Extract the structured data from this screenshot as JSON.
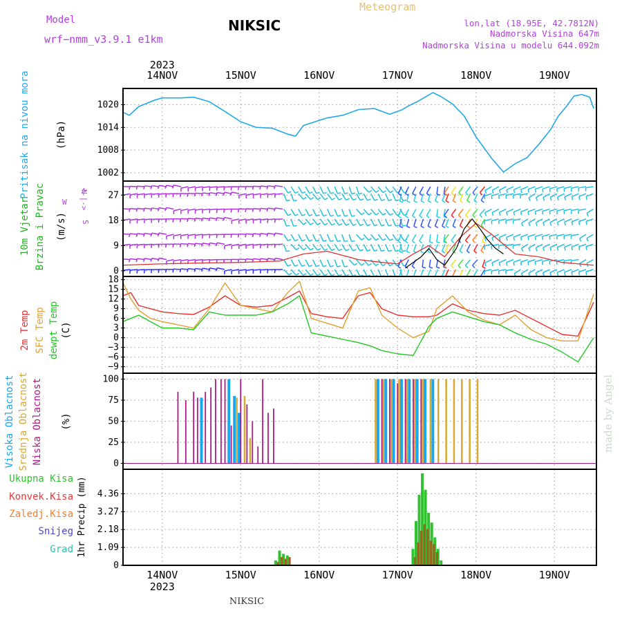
{
  "header": {
    "model_label": "Model",
    "model_name": "wrf−nmm_v3.9.1 e1km",
    "title": "NIKSIC",
    "subtitle": "Meteogram",
    "coords": "lon,lat (18.95E, 42.7812N)",
    "elevation": "Nadmorska Visina 647m",
    "model_elevation": "Nadmorska Visina u modelu 644.092m"
  },
  "footer": {
    "station": "NIKSIC",
    "credit": "made by Angel"
  },
  "colors": {
    "pressure": "#20a8e8",
    "wind_label": "#18b818",
    "temp2m": "#e83030",
    "sfc_temp": "#e0a030",
    "dewpt": "#20c820",
    "high_cloud": "#18a8f0",
    "mid_cloud": "#d8a830",
    "low_cloud": "#b01888",
    "total_precip": "#30c030",
    "conv_precip": "#e83838",
    "frz_precip": "#f08030",
    "snow": "#4848d8",
    "grad": "#20c8b0",
    "label_purple": "#b040e0"
  },
  "chart_data": [
    {
      "id": "pressure",
      "type": "line",
      "year_label": "2023",
      "top_ticks": [
        "14NOV",
        "15NOV",
        "16NOV",
        "17NOV",
        "18NOV",
        "19NOV"
      ],
      "panel_label": "Pritisak na nivou mora",
      "unit": "(hPa)",
      "y_ticks": [
        "1020",
        "1014",
        "1008",
        "1002"
      ],
      "ylim": [
        999.8,
        1024.3
      ],
      "xlim": [
        0,
        6
      ],
      "x": [
        0,
        0.08,
        0.2,
        0.4,
        0.5,
        0.6,
        0.75,
        0.9,
        1.1,
        1.3,
        1.5,
        1.7,
        1.9,
        2.1,
        2.2,
        2.3,
        2.45,
        2.6,
        2.8,
        3.0,
        3.2,
        3.4,
        3.55,
        3.65,
        3.75,
        3.85,
        3.95,
        4.05,
        4.2,
        4.35,
        4.5,
        4.7,
        4.85,
        5.0,
        5.15,
        5.3,
        5.45,
        5.55,
        5.65,
        5.75,
        5.85,
        5.95,
        6.0
      ],
      "values": [
        1018.0,
        1017.2,
        1019.5,
        1021.2,
        1021.8,
        1021.8,
        1021.8,
        1022.0,
        1020.8,
        1018.2,
        1015.5,
        1014.0,
        1013.8,
        1012.2,
        1011.7,
        1014.5,
        1015.5,
        1016.5,
        1017.2,
        1018.7,
        1019.0,
        1017.5,
        1018.6,
        1019.8,
        1020.8,
        1022.0,
        1023.2,
        1022.2,
        1020.2,
        1017.0,
        1011.5,
        1005.8,
        1002.2,
        1004.4,
        1006.0,
        1009.5,
        1013.4,
        1017.0,
        1019.5,
        1022.3,
        1022.7,
        1022.0,
        1019.0
      ]
    },
    {
      "id": "wind",
      "type": "area",
      "panel_label_1": "10m Vjetar",
      "panel_label_2": "Brzina i Pravac",
      "unit": "(m/s)",
      "y_ticks": [
        "27",
        "18",
        "9",
        "0"
      ],
      "ylim": [
        -2,
        32
      ],
      "xlim": [
        0,
        6
      ],
      "compass": {
        "w": "W",
        "e": "E",
        "n": "N",
        "s": "S"
      },
      "barb_regimes": [
        {
          "x0": 0.0,
          "x1": 2.05,
          "color": "#b030e0",
          "angle": 180
        },
        {
          "x0": 2.05,
          "x1": 3.55,
          "color": "#20c0d8",
          "angle": 300
        },
        {
          "x0": 3.55,
          "x1": 4.15,
          "color": "#20d0e0",
          "angle": 250
        },
        {
          "x0": 4.15,
          "x1": 4.7,
          "color": "#f03030",
          "angle": 240
        },
        {
          "x0": 4.7,
          "x1": 6.0,
          "color": "#20c0e0",
          "angle": 200
        }
      ],
      "barb_rows": [
        0,
        4.5,
        9,
        13.5,
        18,
        22.5,
        27,
        30.5
      ],
      "gust_series": {
        "name": "",
        "x": [
          0,
          0.5,
          1.0,
          1.5,
          2.0,
          2.3,
          2.6,
          3.0,
          3.3,
          3.5,
          3.7,
          3.9,
          4.1,
          4.3,
          4.5,
          4.7,
          5.0,
          5.3,
          5.6,
          6.0
        ],
        "values": [
          2.0,
          2.5,
          2.8,
          3.0,
          3.5,
          6.0,
          7.0,
          4.0,
          3.0,
          2.5,
          6.0,
          9.0,
          5.0,
          12.0,
          17.0,
          13.0,
          6.0,
          5.0,
          3.0,
          2.0
        ]
      },
      "speed_series": {
        "name": "",
        "x": [
          3.6,
          3.8,
          3.9,
          4.0,
          4.1,
          4.25,
          4.35,
          4.45,
          4.55,
          4.65,
          4.75,
          4.85
        ],
        "values": [
          1.0,
          5.0,
          8.0,
          4.0,
          2.0,
          8.0,
          15.0,
          18.5,
          15.0,
          11.0,
          8.0,
          6.0
        ]
      }
    },
    {
      "id": "temperature",
      "type": "line",
      "panel_label_1": "2m Temp",
      "panel_label_2": "SFC Temp",
      "panel_label_3": "dewpt Temp",
      "unit": "(C)",
      "y_ticks": [
        "18",
        "15",
        "12",
        "9",
        "6",
        "3",
        "0",
        "−3",
        "−6",
        "−9"
      ],
      "ylim": [
        -11,
        19
      ],
      "xlim": [
        0,
        6
      ],
      "x": [
        0,
        0.1,
        0.2,
        0.35,
        0.5,
        0.7,
        0.9,
        1.1,
        1.3,
        1.5,
        1.7,
        1.9,
        2.1,
        2.25,
        2.4,
        2.6,
        2.8,
        3.0,
        3.15,
        3.3,
        3.5,
        3.7,
        3.9,
        4.0,
        4.2,
        4.4,
        4.6,
        4.8,
        5.0,
        5.2,
        5.4,
        5.6,
        5.8,
        6.0
      ],
      "series": [
        {
          "name": "2m Temp",
          "color": "#e83030",
          "values": [
            13.0,
            14.0,
            10.0,
            9.0,
            8.0,
            7.5,
            7.2,
            9.5,
            13.0,
            10.0,
            9.5,
            10.0,
            12.5,
            14.5,
            7.5,
            6.5,
            6.0,
            13.0,
            14.0,
            9.0,
            7.0,
            6.5,
            6.5,
            7.0,
            10.5,
            8.5,
            7.5,
            7.0,
            8.5,
            6.0,
            3.5,
            1.0,
            0.5,
            11.0
          ]
        },
        {
          "name": "SFC Temp",
          "color": "#e0a030",
          "values": [
            17.0,
            12.0,
            8.5,
            6.0,
            5.0,
            4.0,
            3.0,
            9.0,
            17.0,
            10.0,
            9.0,
            8.0,
            14.0,
            17.5,
            6.0,
            4.5,
            3.0,
            14.5,
            15.5,
            7.0,
            3.0,
            0.0,
            2.0,
            9.0,
            13.0,
            8.0,
            5.5,
            4.0,
            7.0,
            2.5,
            0.0,
            -1.0,
            -1.0,
            13.5
          ]
        },
        {
          "name": "dewpt Temp",
          "color": "#20c820",
          "values": [
            5.0,
            6.0,
            7.0,
            5.0,
            3.0,
            3.0,
            2.5,
            8.0,
            7.0,
            7.0,
            7.0,
            8.0,
            10.5,
            13.0,
            1.5,
            0.5,
            -0.5,
            -1.5,
            -2.5,
            -4.0,
            -5.0,
            -5.5,
            3.5,
            6.0,
            8.0,
            6.5,
            5.0,
            4.0,
            1.5,
            -0.5,
            -2.0,
            -4.5,
            -7.5,
            0.0
          ]
        }
      ]
    },
    {
      "id": "clouds",
      "type": "bar",
      "panel_label_1": "Visoka Oblacnost",
      "panel_label_2": "Srednja Oblacnost",
      "panel_label_3": "Niska Oblacnost",
      "unit": "(%)",
      "y_ticks": [
        "100",
        "75",
        "50",
        "25",
        "0"
      ],
      "ylim": [
        -7,
        107
      ],
      "xlim": [
        0,
        6
      ],
      "series": [
        {
          "name": "Visoka Oblacnost",
          "color": "#18a8f0",
          "x": [
            1.0,
            1.35,
            1.42,
            1.48,
            3.25,
            3.35,
            3.45,
            3.55,
            3.65,
            3.75,
            3.85,
            3.95
          ],
          "values": [
            78,
            100,
            80,
            60,
            100,
            100,
            100,
            100,
            100,
            100,
            100,
            100
          ]
        },
        {
          "name": "Srednja Oblacnost",
          "color": "#d8a830",
          "x": [
            1.45,
            1.55,
            1.62,
            3.22,
            3.32,
            3.42,
            3.52,
            3.62,
            3.72,
            3.82,
            3.92,
            4.02,
            4.12,
            4.22,
            4.32,
            4.42,
            4.52
          ],
          "values": [
            78,
            80,
            30,
            100,
            100,
            100,
            100,
            100,
            100,
            100,
            100,
            100,
            100,
            100,
            100,
            100,
            100
          ]
        },
        {
          "name": "Niska Oblacnost",
          "color": "#b01888",
          "x": [
            0.7,
            0.8,
            0.9,
            0.95,
            1.05,
            1.12,
            1.18,
            1.25,
            1.3,
            1.38,
            1.5,
            1.58,
            1.65,
            1.72,
            1.78,
            1.85,
            1.92,
            3.3,
            3.4,
            3.5,
            3.6,
            3.7,
            3.8
          ],
          "values": [
            85,
            75,
            85,
            78,
            85,
            90,
            100,
            100,
            100,
            45,
            100,
            70,
            50,
            20,
            100,
            60,
            65,
            100,
            100,
            95,
            100,
            100,
            100
          ]
        }
      ]
    },
    {
      "id": "precip",
      "type": "bar",
      "panel_label_1": "Ukupna Kisa",
      "panel_label_2": "Konvek.Kisa",
      "panel_label_3": "Zaledj.Kisa",
      "panel_label_4": "Snijeg",
      "panel_label_5": "Grad",
      "unit": "1hr Precip (mm)",
      "y_ticks": [
        "4.36",
        "3.27",
        "2.18",
        "1.09",
        "0"
      ],
      "ylim": [
        0,
        5.85
      ],
      "xlim": [
        0,
        6
      ],
      "bottom_ticks": [
        "14NOV",
        "15NOV",
        "16NOV",
        "17NOV",
        "18NOV",
        "19NOV"
      ],
      "bottom_year": "2023",
      "total": {
        "x": [
          1.95,
          2.0,
          2.05,
          2.1,
          3.7,
          3.74,
          3.78,
          3.82,
          3.86,
          3.9,
          3.94,
          3.98,
          4.02,
          4.06
        ],
        "values": [
          0.3,
          0.9,
          0.7,
          0.6,
          1.0,
          2.7,
          4.3,
          5.6,
          4.6,
          3.2,
          2.6,
          1.7,
          1.0,
          0.3
        ]
      },
      "convective": {
        "x": [
          1.97,
          2.02,
          2.07,
          2.12,
          3.72,
          3.76,
          3.8,
          3.84,
          3.88,
          3.92,
          3.96,
          4.0
        ],
        "values": [
          0.2,
          0.5,
          0.4,
          0.5,
          0.5,
          1.4,
          2.1,
          2.5,
          2.2,
          1.5,
          1.3,
          0.8
        ]
      }
    }
  ]
}
